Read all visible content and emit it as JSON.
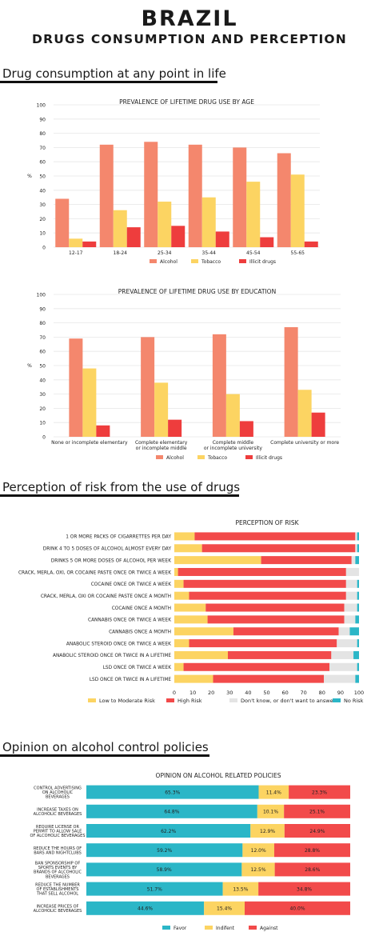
{
  "header": {
    "title": "BRAZIL",
    "subtitle": "DRUGS CONSUMPTION AND PERCEPTION"
  },
  "sections": {
    "consumption": "Drug consumption at any point in life",
    "perception": "Perception of risk from the use of drugs",
    "opinion": "Opinion on alcohol control policies"
  },
  "colors": {
    "alcohol": "#f4876d",
    "tobacco": "#fcd462",
    "illicit": "#ee3d3d",
    "low": "#fcd462",
    "high": "#f24a4a",
    "dontknow": "#e4e4e4",
    "norisk": "#2bb6c7",
    "favor": "#2bb6c7",
    "indifferent": "#fcd462",
    "against": "#f24a4a"
  },
  "chart_data": [
    {
      "type": "bar",
      "title": "PREVALENCE OF LIFETIME DRUG USE BY AGE",
      "ylabel": "%",
      "ylim": [
        0,
        100
      ],
      "yticks": [
        "0",
        "10",
        "20",
        "30",
        "40",
        "50",
        "60",
        "70",
        "80",
        "90",
        "100"
      ],
      "categories": [
        "12-17",
        "18-24",
        "25-34",
        "35-44",
        "45-54",
        "55-65"
      ],
      "series": [
        {
          "name": "Alcohol",
          "values": [
            34,
            72,
            74,
            72,
            70,
            66
          ]
        },
        {
          "name": "Tobacco",
          "values": [
            6,
            26,
            32,
            35,
            46,
            51
          ]
        },
        {
          "name": "Illicit drugs",
          "values": [
            4,
            14,
            15,
            11,
            7,
            4
          ]
        }
      ],
      "legend": "bottom"
    },
    {
      "type": "bar",
      "title": "PREVALENCE OF LIFETIME DRUG USE BY EDUCATION",
      "ylabel": "%",
      "ylim": [
        0,
        100
      ],
      "yticks": [
        "0",
        "10",
        "20",
        "30",
        "40",
        "50",
        "60",
        "70",
        "80",
        "90",
        "100"
      ],
      "categories": [
        [
          "None or incomplete elementary"
        ],
        [
          "Complete elementary",
          "or incomplete middle"
        ],
        [
          "Complete middle",
          "or incomplete university"
        ],
        [
          "Complete university or more"
        ]
      ],
      "series": [
        {
          "name": "Alcohol",
          "values": [
            69,
            70,
            72,
            77
          ]
        },
        {
          "name": "Tobacco",
          "values": [
            48,
            38,
            30,
            33
          ]
        },
        {
          "name": "Illicit drugs",
          "values": [
            8,
            12,
            11,
            17
          ]
        }
      ],
      "legend": "bottom"
    },
    {
      "type": "bar",
      "orientation": "horizontal",
      "stacked": true,
      "title": "PERCEPTION OF RISK",
      "xlim": [
        0,
        100
      ],
      "xticks": [
        "0",
        "10",
        "20",
        "30",
        "40",
        "50",
        "60",
        "70",
        "80",
        "90",
        "100"
      ],
      "categories": [
        "1 OR MORE PACKS OF CIGARRETTES PER DAY",
        "DRINK 4 TO 5 DOSES OF ALCOHOL ALMOST EVERY DAY",
        "DRINKS 5 OR MORE DOSES OF ALCOHOL PER WEEK",
        "CRACK, MERLA, OXI, OR COCAINE PASTE ONCE OR TWICE A WEEK",
        "COCAINE ONCE OR TWICE A WEEK",
        "CRACK, MERLA, OXI OR COCAINE PASTE ONCE A MONTH",
        "COCAINE ONCE A MONTH",
        "CANNABIS ONCE OR TWICE A WEEK",
        "CANNABIS ONCE A MONTH",
        "ANABOLIC STEROID ONCE OR TWICE A WEEK",
        "ANABOLIC STEROID ONCE OR TWICE IN A LIFETIME",
        "LSD ONCE OR TWICE A WEEK",
        "LSD ONCE OR TWICE IN A LIFETIME"
      ],
      "series": [
        {
          "name": "Low to Moderate Risk",
          "values": [
            11,
            15,
            47,
            2,
            5,
            8,
            17,
            18,
            32,
            8,
            29,
            5,
            21
          ]
        },
        {
          "name": "High Risk",
          "values": [
            87,
            83,
            49,
            91,
            88,
            85,
            75,
            74,
            57,
            80,
            56,
            79,
            60
          ]
        },
        {
          "name": "Don't know, or don't want to answer",
          "values": [
            1,
            1,
            2,
            7,
            6,
            6,
            7,
            6,
            6,
            11,
            12,
            15,
            17
          ]
        },
        {
          "name": "No Risk",
          "values": [
            1,
            1,
            2,
            0,
            1,
            1,
            1,
            2,
            5,
            1,
            3,
            1,
            2
          ]
        }
      ],
      "legend": "bottom"
    },
    {
      "type": "bar",
      "orientation": "horizontal",
      "stacked": true,
      "title": "OPINION ON ALCOHOL RELATED POLICIES",
      "categories": [
        [
          "CONTROL ADVERTISING",
          "ON ALCOHOLIC",
          "BEVERAGES"
        ],
        [
          "INCREASE TAXES ON",
          "ALCOHOLIC BEVERAGES"
        ],
        [
          "REQUIRE LICENSE OR",
          "PERMIT TO ALLOW SALE",
          "OF ALCOHOLIC BEVERAGES"
        ],
        [
          "REDUCE THE HOURS OF",
          "BARS AND NIGHTCLUBS"
        ],
        [
          "BAN SPONSORSHIP OF",
          "SPORTS EVENTS BY",
          "BRANDS OF ALCOHOLIC",
          "BEVERAGES"
        ],
        [
          "REDUCE THE NUMBER",
          "OF ESTABLISHMENTS",
          "THAT SELL ALCOHOL"
        ],
        [
          "INCREASE PRICES OF",
          "ALCOHOLIC BEVERAGES"
        ]
      ],
      "series": [
        {
          "name": "Favor",
          "values": [
            65.3,
            64.8,
            62.2,
            59.2,
            58.9,
            51.7,
            44.6
          ]
        },
        {
          "name": "Indifent",
          "values": [
            11.4,
            10.1,
            12.9,
            12.0,
            12.5,
            13.5,
            15.4
          ]
        },
        {
          "name": "Against",
          "values": [
            23.3,
            25.1,
            24.9,
            28.8,
            28.6,
            34.8,
            40.0
          ]
        }
      ],
      "data_labels": [
        [
          "65.3%",
          "64.8%",
          "62.2%",
          "59.2%",
          "58.9%",
          "51.7%",
          "44.6%"
        ],
        [
          "11.4%",
          "10.1%",
          "12.9%",
          "12.0%",
          "12.5%",
          "13.5%",
          "15.4%"
        ],
        [
          "23.3%",
          "25.1%",
          "24.9%",
          "28.8%",
          "28.6%",
          "34.8%",
          "40.0%"
        ]
      ],
      "legend": "bottom"
    }
  ]
}
